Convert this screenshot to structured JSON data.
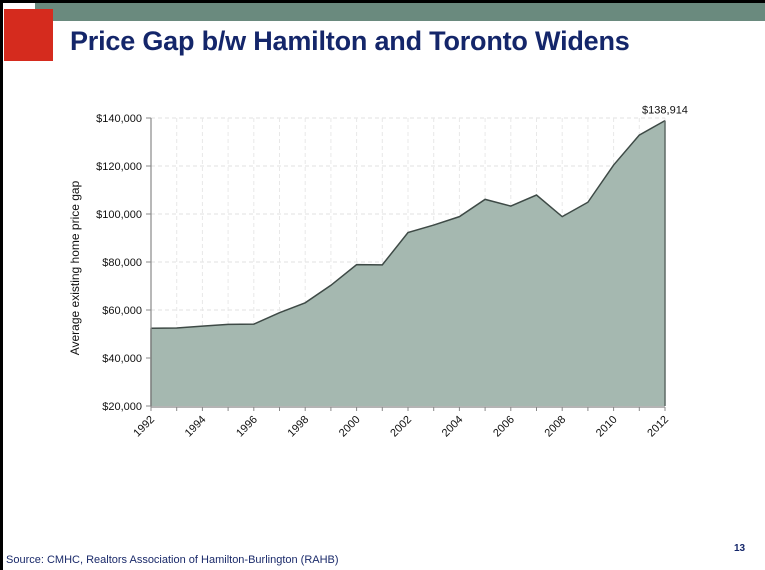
{
  "slide": {
    "title": "Price Gap b/w Hamilton and Toronto Widens",
    "source": "Source: CMHC, Realtors Association of Hamilton-Burlington (RAHB)",
    "page_number": "13",
    "colors": {
      "accent_red": "#d52b1e",
      "band_gray": "#6a8a7e",
      "title_navy": "#14266a",
      "area_fill": "#a5b8b0",
      "area_line": "#3e4a46"
    }
  },
  "chart_data": {
    "type": "area",
    "title": "",
    "xlabel": "",
    "ylabel": "Average existing home price gap",
    "x": [
      1992,
      1993,
      1994,
      1995,
      1996,
      1997,
      1998,
      1999,
      2000,
      2001,
      2002,
      2003,
      2004,
      2005,
      2006,
      2007,
      2008,
      2009,
      2010,
      2011,
      2012
    ],
    "series": [
      {
        "name": "Average existing home price gap",
        "values": [
          52400,
          52500,
          53300,
          54000,
          54100,
          58900,
          63000,
          70300,
          78900,
          78800,
          92300,
          95400,
          98900,
          106100,
          103300,
          107900,
          98900,
          104900,
          120400,
          132900,
          138914
        ]
      }
    ],
    "xlim": [
      1992,
      2012
    ],
    "ylim": [
      20000,
      140000
    ],
    "x_tick_labels": [
      "1992",
      "1994",
      "1996",
      "1998",
      "2000",
      "2002",
      "2004",
      "2006",
      "2008",
      "2010",
      "2012"
    ],
    "y_ticks": [
      20000,
      40000,
      60000,
      80000,
      100000,
      120000,
      140000
    ],
    "y_tick_labels": [
      "$20,000",
      "$40,000",
      "$60,000",
      "$80,000",
      "$100,000",
      "$120,000",
      "$140,000"
    ],
    "annotations": [
      {
        "x": 2012,
        "text": "$138,914"
      }
    ],
    "grid": true,
    "legend": "none"
  }
}
